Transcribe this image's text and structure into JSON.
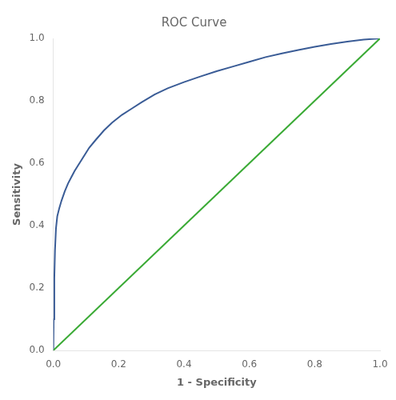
{
  "chart_data": {
    "type": "line",
    "title": "ROC Curve",
    "xlabel": "1 - Specificity",
    "ylabel": "Sensitivity",
    "xlim": [
      0.0,
      1.0
    ],
    "ylim": [
      0.0,
      1.0
    ],
    "xticks": [
      {
        "value": 0.0,
        "label": "0.0"
      },
      0.2,
      0.4,
      0.6,
      0.8,
      {
        "value": 1.0,
        "label": "1.0"
      }
    ],
    "yticks": [
      {
        "value": 0.0,
        "label": "0.0"
      },
      0.2,
      0.4,
      0.6,
      0.8,
      {
        "value": 1.0,
        "label": "1.0"
      }
    ],
    "grid": false,
    "series": [
      {
        "color": "#3aaa35",
        "x": [
          0,
          1
        ],
        "values": [
          0,
          1
        ]
      },
      {
        "color": "#3a5c96",
        "x": [
          0.0,
          0.001,
          0.003,
          0.005,
          0.008,
          0.012,
          0.018,
          0.025,
          0.035,
          0.045,
          0.055,
          0.065,
          0.08,
          0.095,
          0.11,
          0.13,
          0.155,
          0.18,
          0.21,
          0.24,
          0.27,
          0.31,
          0.35,
          0.4,
          0.45,
          0.5,
          0.55,
          0.6,
          0.65,
          0.7,
          0.75,
          0.8,
          0.85,
          0.9,
          0.95,
          1.0
        ],
        "values": [
          0.0,
          0.1,
          0.23,
          0.32,
          0.39,
          0.43,
          0.455,
          0.48,
          0.51,
          0.535,
          0.555,
          0.575,
          0.6,
          0.625,
          0.65,
          0.675,
          0.705,
          0.73,
          0.755,
          0.775,
          0.795,
          0.82,
          0.84,
          0.86,
          0.878,
          0.895,
          0.91,
          0.925,
          0.94,
          0.952,
          0.963,
          0.973,
          0.982,
          0.99,
          0.996,
          1.0
        ]
      }
    ]
  }
}
